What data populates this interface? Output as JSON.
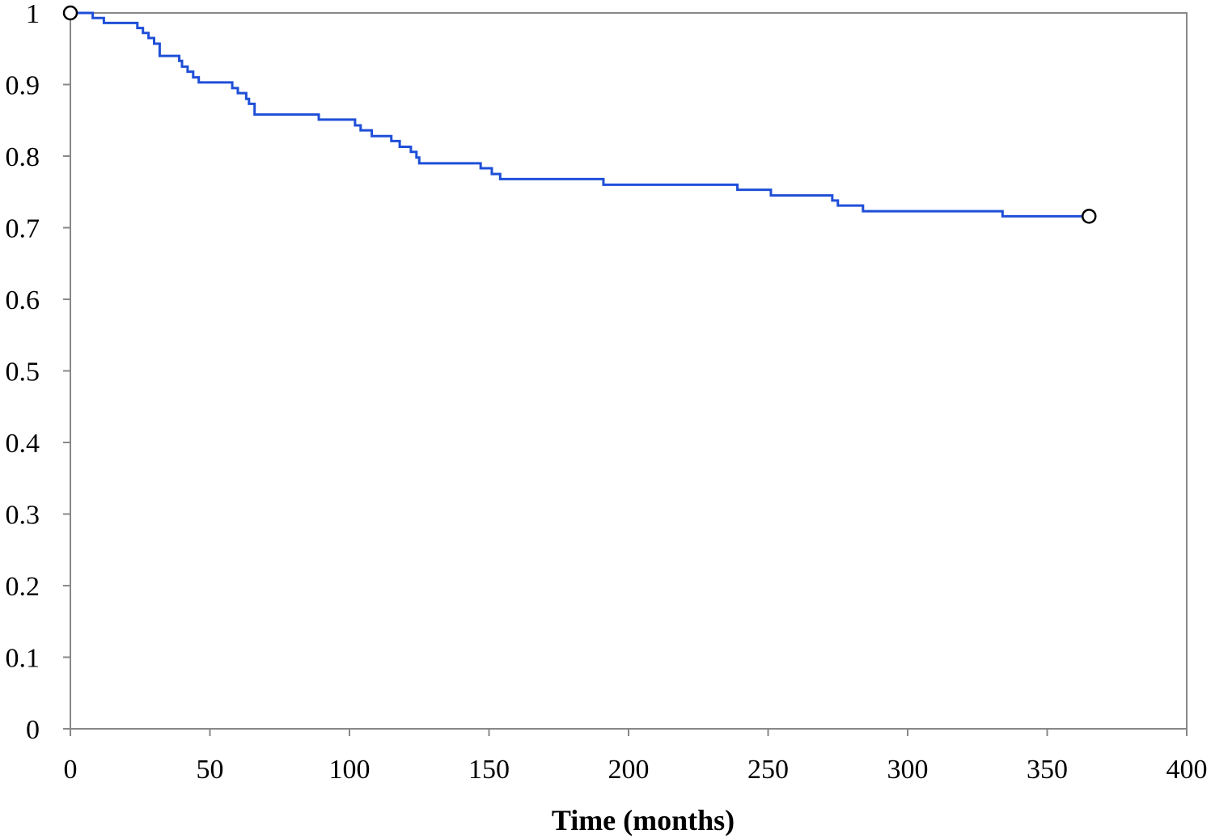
{
  "chart_data": {
    "type": "line",
    "step": true,
    "title": "",
    "xlabel": "Time (months)",
    "ylabel": "",
    "xlim": [
      0,
      400
    ],
    "ylim": [
      0,
      1
    ],
    "x_ticks": [
      "0",
      "50",
      "100",
      "150",
      "200",
      "250",
      "300",
      "350",
      "400"
    ],
    "y_ticks": [
      "0",
      "0.1",
      "0.2",
      "0.3",
      "0.4",
      "0.5",
      "0.6",
      "0.7",
      "0.8",
      "0.9",
      "1"
    ],
    "grid": false,
    "legend": "none",
    "line_color": "#1f4fd8",
    "series": [
      {
        "x": [
          0,
          8,
          12,
          24,
          26,
          28,
          30,
          32,
          39,
          40,
          42,
          44,
          46,
          48,
          52,
          58,
          60,
          63,
          64,
          66,
          89,
          102,
          104,
          108,
          115,
          118,
          122,
          124,
          125,
          126,
          147,
          151,
          154,
          191,
          239,
          251,
          273,
          275,
          284,
          334,
          365
        ],
        "y": [
          1.0,
          0.993,
          0.986,
          0.979,
          0.972,
          0.965,
          0.957,
          0.94,
          0.933,
          0.925,
          0.918,
          0.91,
          0.903,
          0.903,
          0.903,
          0.895,
          0.888,
          0.88,
          0.873,
          0.858,
          0.851,
          0.843,
          0.836,
          0.828,
          0.821,
          0.813,
          0.806,
          0.798,
          0.79,
          0.79,
          0.783,
          0.775,
          0.768,
          0.76,
          0.753,
          0.745,
          0.738,
          0.731,
          0.723,
          0.716,
          0.716
        ]
      }
    ],
    "markers": [
      {
        "x": 0,
        "y": 1.0,
        "style": "open-circle"
      },
      {
        "x": 365,
        "y": 0.716,
        "style": "open-circle"
      }
    ]
  }
}
